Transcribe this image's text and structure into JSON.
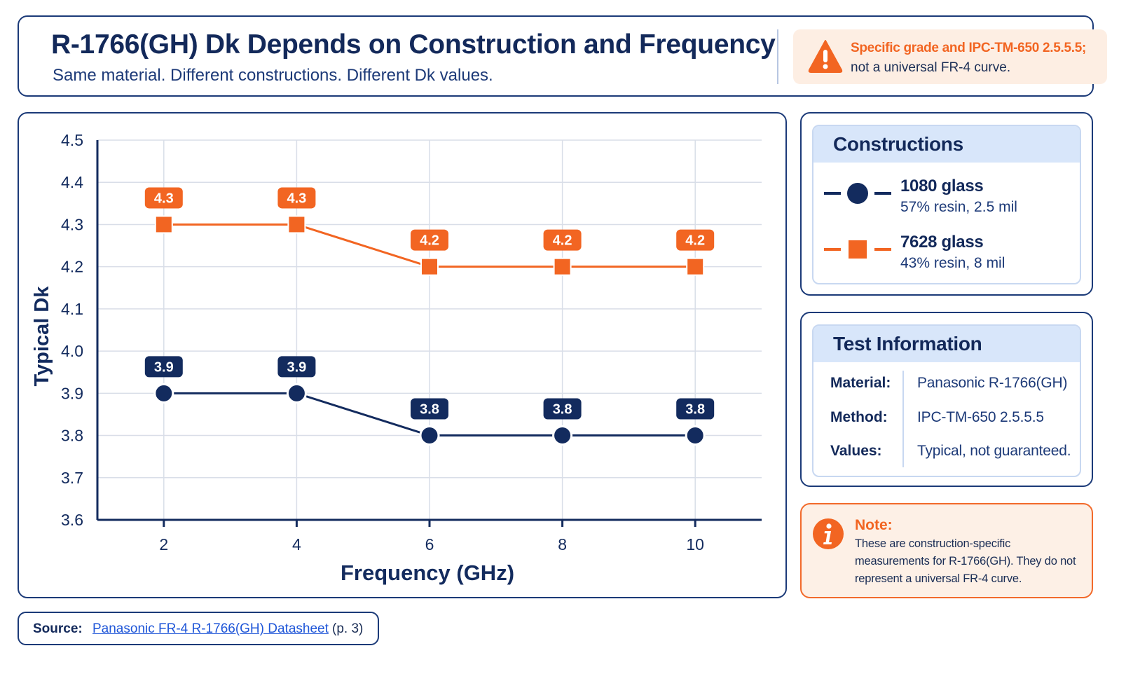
{
  "header": {
    "title": "R-1766(GH) Dk Depends on Construction and Frequency",
    "subtitle": "Same material. Different constructions. Different Dk values.",
    "warning_line1": "Specific grade and IPC-TM-650 2.5.5.5;",
    "warning_line2": "not a universal FR-4 curve."
  },
  "colors": {
    "navy": "#132b5e",
    "orange": "#f26522",
    "grid": "#d9dee8",
    "panel_head": "#d8e6fa"
  },
  "chart_data": {
    "type": "line",
    "xlabel": "Frequency (GHz)",
    "ylabel": "Typical Dk",
    "x": [
      2,
      4,
      6,
      8,
      10
    ],
    "xlim": [
      1,
      11
    ],
    "ylim": [
      3.6,
      4.5
    ],
    "yticks": [
      "3.6",
      "3.7",
      "3.8",
      "3.9",
      "4.0",
      "4.1",
      "4.2",
      "4.3",
      "4.4",
      "4.5"
    ],
    "xticks": [
      "2",
      "4",
      "6",
      "8",
      "10"
    ],
    "grid": true,
    "series": [
      {
        "name": "1080 glass",
        "color": "#132b5e",
        "marker": "circle",
        "values": [
          3.9,
          3.9,
          3.8,
          3.8,
          3.8
        ],
        "labels": [
          "3.9",
          "3.9",
          "3.8",
          "3.8",
          "3.8"
        ]
      },
      {
        "name": "7628 glass",
        "color": "#f26522",
        "marker": "square",
        "values": [
          4.3,
          4.3,
          4.2,
          4.2,
          4.2
        ],
        "labels": [
          "4.3",
          "4.3",
          "4.2",
          "4.2",
          "4.2"
        ]
      }
    ]
  },
  "constructions": {
    "heading": "Constructions",
    "items": [
      {
        "name": "1080 glass",
        "detail": "57% resin, 2.5 mil"
      },
      {
        "name": "7628 glass",
        "detail": "43% resin, 8 mil"
      }
    ]
  },
  "test_info": {
    "heading": "Test Information",
    "rows": [
      {
        "label": "Material:",
        "value": "Panasonic R-1766(GH)"
      },
      {
        "label": "Method:",
        "value": "IPC-TM-650 2.5.5.5"
      },
      {
        "label": "Values:",
        "value": "Typical, not guaranteed."
      }
    ]
  },
  "note": {
    "title": "Note:",
    "lines": [
      "These are construction-specific",
      "measurements for R-1766(GH). They do not",
      "represent a universal FR-4 curve."
    ]
  },
  "source": {
    "label": "Source:",
    "link_text": "Panasonic FR-4 R-1766(GH) Datasheet",
    "page": "(p. 3)"
  }
}
